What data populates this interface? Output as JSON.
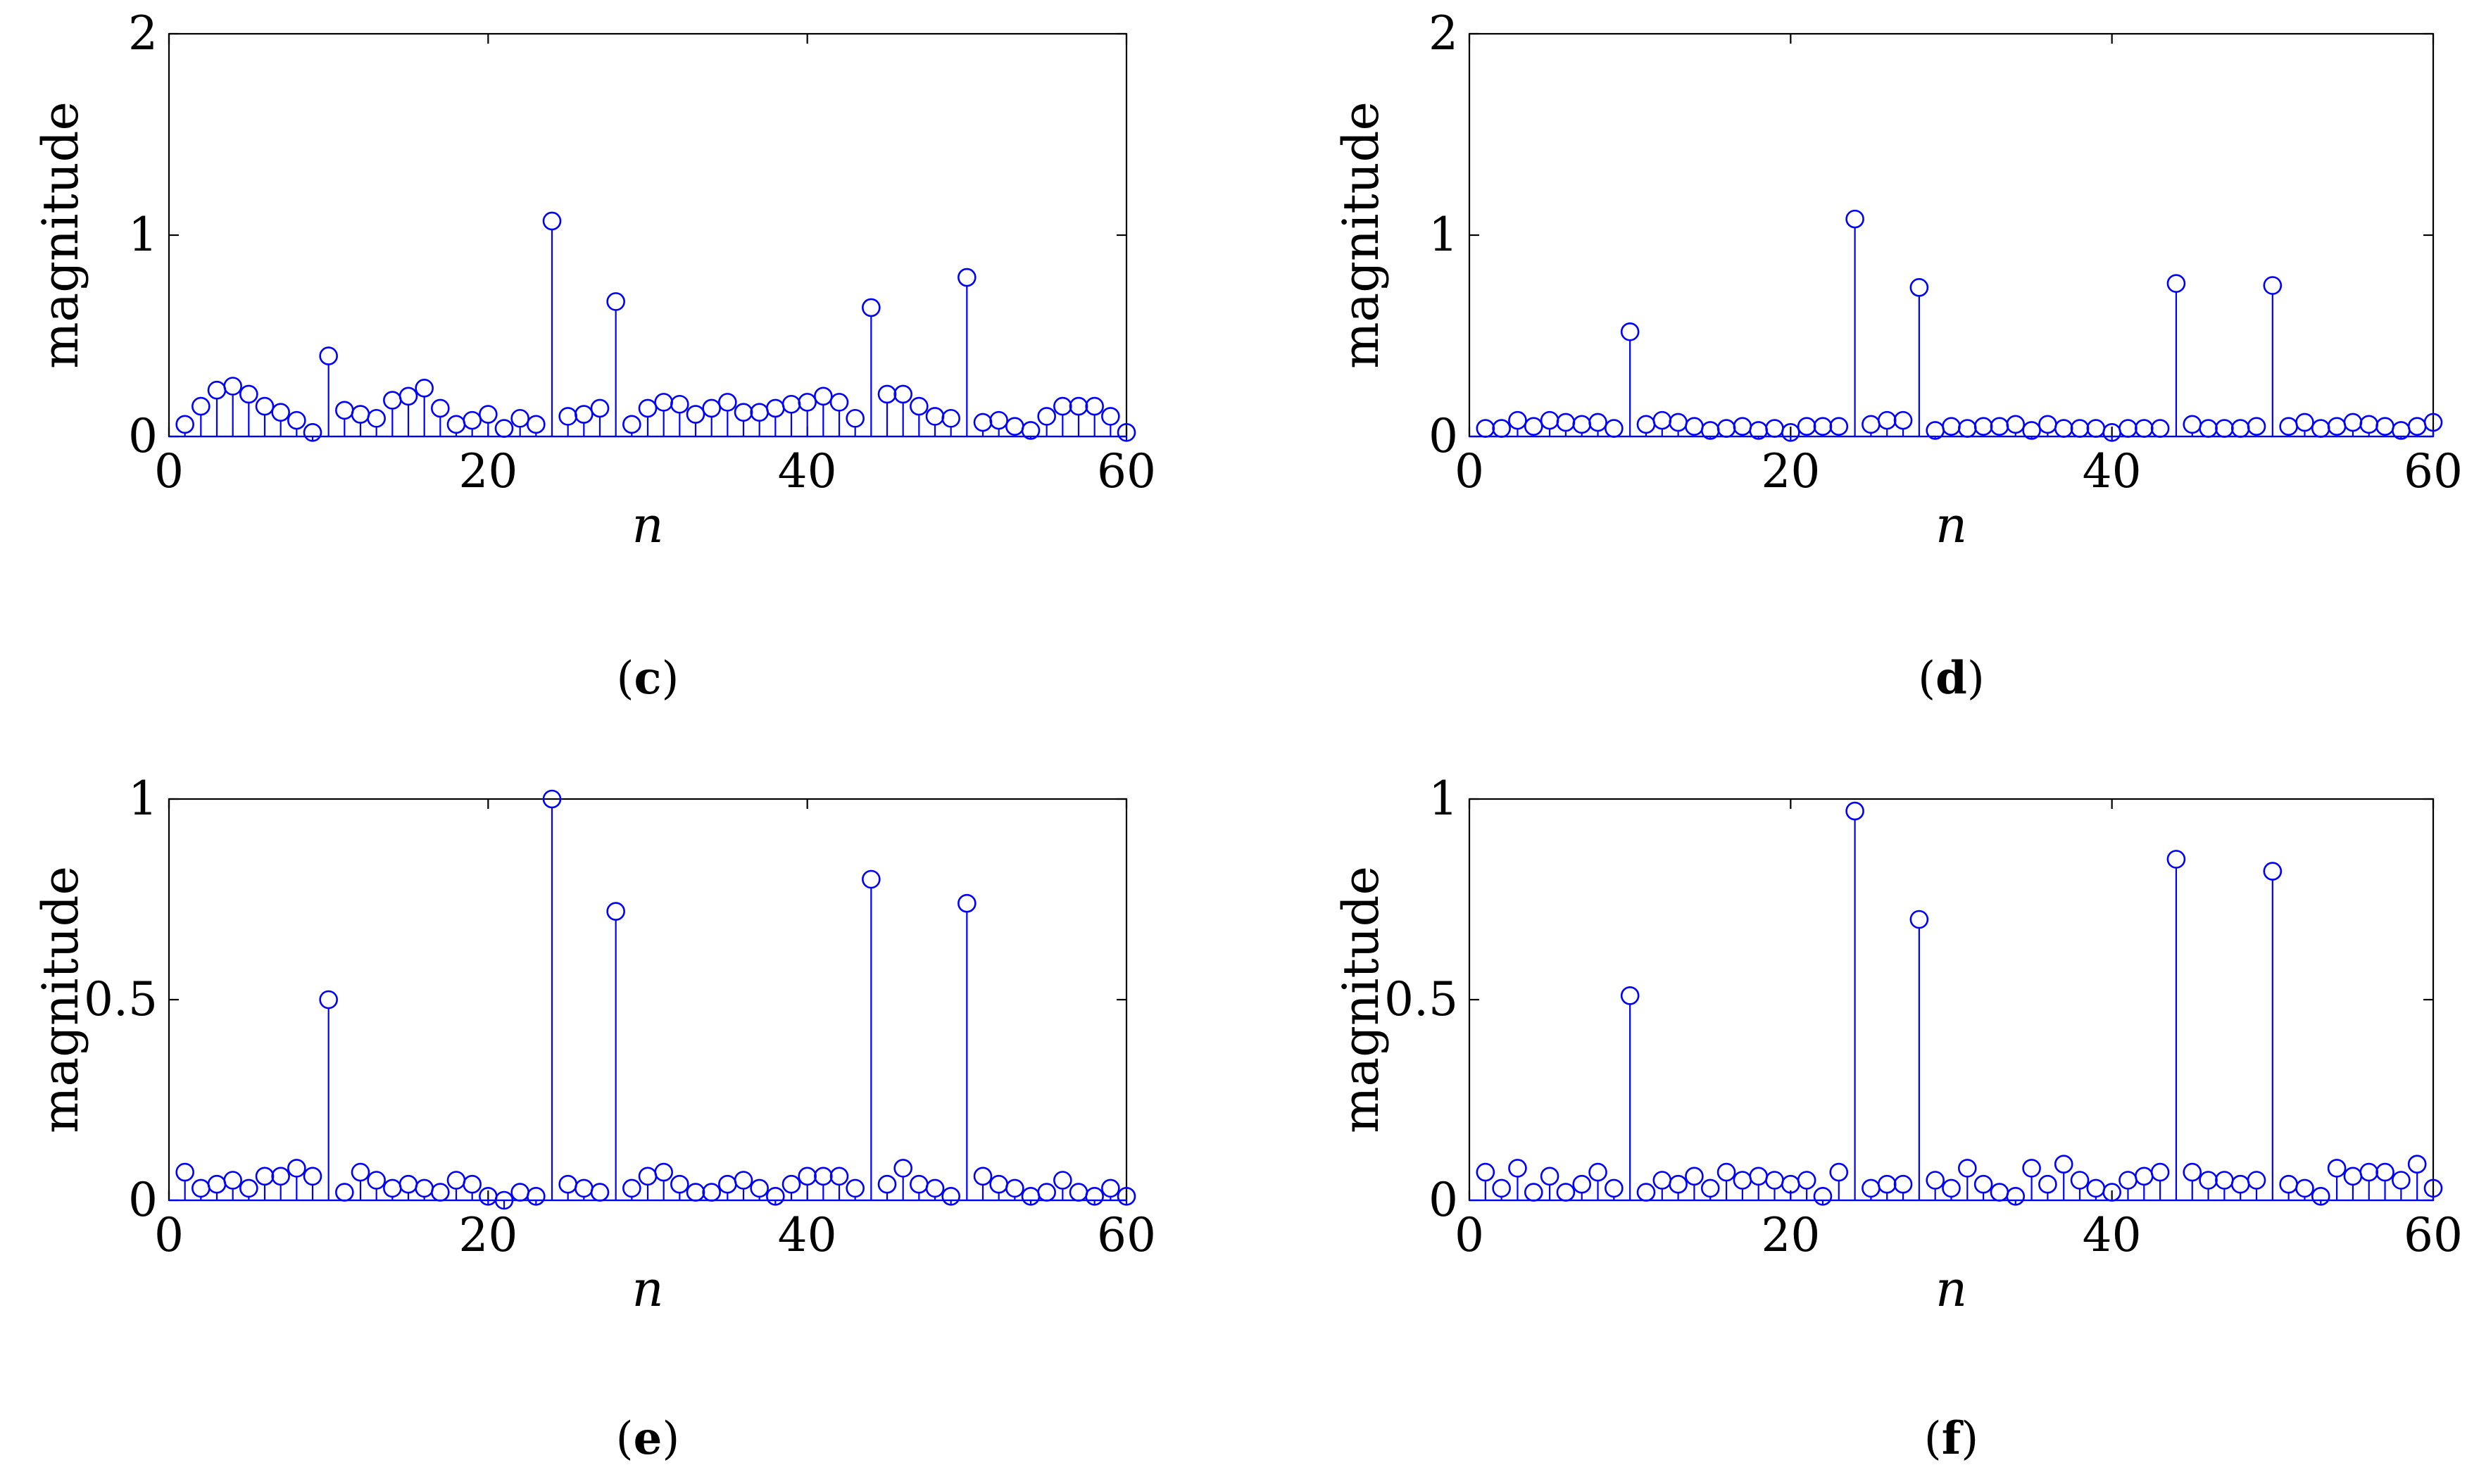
{
  "chart_data": [
    {
      "type": "stem",
      "panel": "c",
      "xlabel": "n",
      "ylabel": "magnitude",
      "xlim": [
        0,
        60
      ],
      "ylim": [
        0,
        2
      ],
      "xticks": [
        0,
        20,
        40,
        60
      ],
      "xtick_labels": [
        "0",
        "20",
        "40",
        "60"
      ],
      "yticks": [
        0,
        1,
        2
      ],
      "ytick_labels": [
        "0",
        "1",
        "2"
      ],
      "caption": {
        "open": "(",
        "letter": "c",
        "close": ")"
      },
      "x": [
        1,
        2,
        3,
        4,
        5,
        6,
        7,
        8,
        9,
        10,
        11,
        12,
        13,
        14,
        15,
        16,
        17,
        18,
        19,
        20,
        21,
        22,
        23,
        24,
        25,
        26,
        27,
        28,
        29,
        30,
        31,
        32,
        33,
        34,
        35,
        36,
        37,
        38,
        39,
        40,
        41,
        42,
        43,
        44,
        45,
        46,
        47,
        48,
        49,
        50,
        51,
        52,
        53,
        54,
        55,
        56,
        57,
        58,
        59,
        60
      ],
      "values": [
        0.06,
        0.15,
        0.23,
        0.25,
        0.21,
        0.15,
        0.12,
        0.08,
        0.02,
        0.4,
        0.13,
        0.11,
        0.09,
        0.18,
        0.2,
        0.24,
        0.14,
        0.06,
        0.08,
        0.11,
        0.04,
        0.09,
        0.06,
        1.07,
        0.1,
        0.11,
        0.14,
        0.67,
        0.06,
        0.14,
        0.17,
        0.16,
        0.11,
        0.14,
        0.17,
        0.12,
        0.12,
        0.14,
        0.16,
        0.17,
        0.2,
        0.17,
        0.09,
        0.64,
        0.21,
        0.21,
        0.15,
        0.1,
        0.09,
        0.79,
        0.07,
        0.08,
        0.05,
        0.03,
        0.1,
        0.15,
        0.15,
        0.15,
        0.1,
        0.02
      ]
    },
    {
      "type": "stem",
      "panel": "d",
      "xlabel": "n",
      "ylabel": "magnitude",
      "xlim": [
        0,
        60
      ],
      "ylim": [
        0,
        2
      ],
      "xticks": [
        0,
        20,
        40,
        60
      ],
      "xtick_labels": [
        "0",
        "20",
        "40",
        "60"
      ],
      "yticks": [
        0,
        1,
        2
      ],
      "ytick_labels": [
        "0",
        "1",
        "2"
      ],
      "caption": {
        "open": "(",
        "letter": "d",
        "close": ")"
      },
      "x": [
        1,
        2,
        3,
        4,
        5,
        6,
        7,
        8,
        9,
        10,
        11,
        12,
        13,
        14,
        15,
        16,
        17,
        18,
        19,
        20,
        21,
        22,
        23,
        24,
        25,
        26,
        27,
        28,
        29,
        30,
        31,
        32,
        33,
        34,
        35,
        36,
        37,
        38,
        39,
        40,
        41,
        42,
        43,
        44,
        45,
        46,
        47,
        48,
        49,
        50,
        51,
        52,
        53,
        54,
        55,
        56,
        57,
        58,
        59,
        60
      ],
      "values": [
        0.04,
        0.04,
        0.08,
        0.05,
        0.08,
        0.07,
        0.06,
        0.07,
        0.04,
        0.52,
        0.06,
        0.08,
        0.07,
        0.05,
        0.03,
        0.04,
        0.05,
        0.03,
        0.04,
        0.02,
        0.05,
        0.05,
        0.05,
        1.08,
        0.06,
        0.08,
        0.08,
        0.74,
        0.03,
        0.05,
        0.04,
        0.05,
        0.05,
        0.06,
        0.03,
        0.06,
        0.04,
        0.04,
        0.04,
        0.02,
        0.04,
        0.04,
        0.04,
        0.76,
        0.06,
        0.04,
        0.04,
        0.04,
        0.05,
        0.75,
        0.05,
        0.07,
        0.04,
        0.05,
        0.07,
        0.06,
        0.05,
        0.03,
        0.05,
        0.07
      ]
    },
    {
      "type": "stem",
      "panel": "e",
      "xlabel": "n",
      "ylabel": "magnitude",
      "xlim": [
        0,
        60
      ],
      "ylim": [
        0,
        1
      ],
      "xticks": [
        0,
        20,
        40,
        60
      ],
      "xtick_labels": [
        "0",
        "20",
        "40",
        "60"
      ],
      "yticks": [
        0,
        0.5,
        1
      ],
      "ytick_labels": [
        "0",
        "0.5",
        "1"
      ],
      "caption": {
        "open": "(",
        "letter": "e",
        "close": ")"
      },
      "x": [
        1,
        2,
        3,
        4,
        5,
        6,
        7,
        8,
        9,
        10,
        11,
        12,
        13,
        14,
        15,
        16,
        17,
        18,
        19,
        20,
        21,
        22,
        23,
        24,
        25,
        26,
        27,
        28,
        29,
        30,
        31,
        32,
        33,
        34,
        35,
        36,
        37,
        38,
        39,
        40,
        41,
        42,
        43,
        44,
        45,
        46,
        47,
        48,
        49,
        50,
        51,
        52,
        53,
        54,
        55,
        56,
        57,
        58,
        59,
        60
      ],
      "values": [
        0.07,
        0.03,
        0.04,
        0.05,
        0.03,
        0.06,
        0.06,
        0.08,
        0.06,
        0.5,
        0.02,
        0.07,
        0.05,
        0.03,
        0.04,
        0.03,
        0.02,
        0.05,
        0.04,
        0.01,
        0.0,
        0.02,
        0.01,
        1.0,
        0.04,
        0.03,
        0.02,
        0.72,
        0.03,
        0.06,
        0.07,
        0.04,
        0.02,
        0.02,
        0.04,
        0.05,
        0.03,
        0.01,
        0.04,
        0.06,
        0.06,
        0.06,
        0.03,
        0.8,
        0.04,
        0.08,
        0.04,
        0.03,
        0.01,
        0.74,
        0.06,
        0.04,
        0.03,
        0.01,
        0.02,
        0.05,
        0.02,
        0.01,
        0.03,
        0.01
      ]
    },
    {
      "type": "stem",
      "panel": "f",
      "xlabel": "n",
      "ylabel": "magnitude",
      "xlim": [
        0,
        60
      ],
      "ylim": [
        0,
        1
      ],
      "xticks": [
        0,
        20,
        40,
        60
      ],
      "xtick_labels": [
        "0",
        "20",
        "40",
        "60"
      ],
      "yticks": [
        0,
        0.5,
        1
      ],
      "ytick_labels": [
        "0",
        "0.5",
        "1"
      ],
      "caption": {
        "open": "(",
        "letter": "f",
        "close": ")"
      },
      "x": [
        1,
        2,
        3,
        4,
        5,
        6,
        7,
        8,
        9,
        10,
        11,
        12,
        13,
        14,
        15,
        16,
        17,
        18,
        19,
        20,
        21,
        22,
        23,
        24,
        25,
        26,
        27,
        28,
        29,
        30,
        31,
        32,
        33,
        34,
        35,
        36,
        37,
        38,
        39,
        40,
        41,
        42,
        43,
        44,
        45,
        46,
        47,
        48,
        49,
        50,
        51,
        52,
        53,
        54,
        55,
        56,
        57,
        58,
        59,
        60
      ],
      "values": [
        0.07,
        0.03,
        0.08,
        0.02,
        0.06,
        0.02,
        0.04,
        0.07,
        0.03,
        0.51,
        0.02,
        0.05,
        0.04,
        0.06,
        0.03,
        0.07,
        0.05,
        0.06,
        0.05,
        0.04,
        0.05,
        0.01,
        0.07,
        0.97,
        0.03,
        0.04,
        0.04,
        0.7,
        0.05,
        0.03,
        0.08,
        0.04,
        0.02,
        0.01,
        0.08,
        0.04,
        0.09,
        0.05,
        0.03,
        0.02,
        0.05,
        0.06,
        0.07,
        0.85,
        0.07,
        0.05,
        0.05,
        0.04,
        0.05,
        0.82,
        0.04,
        0.03,
        0.01,
        0.08,
        0.06,
        0.07,
        0.07,
        0.05,
        0.09,
        0.03
      ]
    }
  ]
}
